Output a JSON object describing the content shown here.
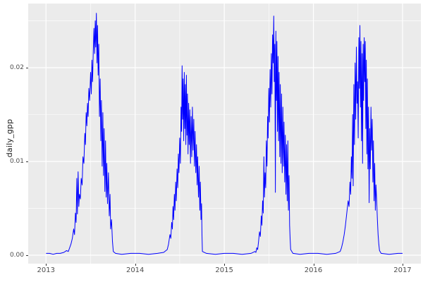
{
  "figure": {
    "background_color": "#FFFFFF",
    "panel_color": "#EBEBEB",
    "gridline_color": "#FFFFFF",
    "tick_label_color": "#4D4D4D",
    "tick_mark_color": "#333333"
  },
  "chart_data": {
    "type": "line",
    "title": "",
    "xlabel": "",
    "ylabel": "daily_gpp",
    "legend": "none",
    "grid": "on",
    "line_color": "#0000FF",
    "x_unit": "decimal year",
    "xlim": [
      2012.8,
      2017.206
    ],
    "ylim": [
      -0.0009,
      0.02684
    ],
    "x_ticks": {
      "values": [
        2013,
        2014,
        2015,
        2016,
        2017
      ],
      "labels": [
        "2013",
        "2014",
        "2015",
        "2016",
        "2017"
      ]
    },
    "x_minor": [
      2013.5,
      2014.5,
      2015.5,
      2016.5
    ],
    "y_ticks": {
      "values": [
        0,
        0.01,
        0.02
      ],
      "labels": [
        "0.00",
        "0.01",
        "0.02"
      ]
    },
    "y_minor": [
      0.005,
      0.015,
      0.025
    ],
    "points": [
      [
        2013.0,
        0.0002
      ],
      [
        2013.04,
        0.0002
      ],
      [
        2013.08,
        0.0001
      ],
      [
        2013.12,
        0.0002
      ],
      [
        2013.16,
        0.0002
      ],
      [
        2013.2,
        0.0003
      ],
      [
        2013.23,
        0.0005
      ],
      [
        2013.25,
        0.0004
      ],
      [
        2013.265,
        0.0008
      ],
      [
        2013.28,
        0.0012
      ],
      [
        2013.295,
        0.0018
      ],
      [
        2013.31,
        0.0028
      ],
      [
        2013.32,
        0.0022
      ],
      [
        2013.33,
        0.0045
      ],
      [
        2013.338,
        0.0035
      ],
      [
        2013.345,
        0.0082
      ],
      [
        2013.352,
        0.0044
      ],
      [
        2013.36,
        0.0089
      ],
      [
        2013.368,
        0.0052
      ],
      [
        2013.375,
        0.0065
      ],
      [
        2013.385,
        0.006
      ],
      [
        2013.395,
        0.0082
      ],
      [
        2013.405,
        0.0075
      ],
      [
        2013.415,
        0.0105
      ],
      [
        2013.425,
        0.0098
      ],
      [
        2013.435,
        0.013
      ],
      [
        2013.442,
        0.0118
      ],
      [
        2013.45,
        0.0152
      ],
      [
        2013.458,
        0.0138
      ],
      [
        2013.465,
        0.0162
      ],
      [
        2013.472,
        0.0148
      ],
      [
        2013.48,
        0.0178
      ],
      [
        2013.49,
        0.0165
      ],
      [
        2013.5,
        0.0195
      ],
      [
        2013.508,
        0.0172
      ],
      [
        2013.515,
        0.0208
      ],
      [
        2013.522,
        0.0185
      ],
      [
        2013.53,
        0.0218
      ],
      [
        2013.538,
        0.0242
      ],
      [
        2013.545,
        0.0215
      ],
      [
        2013.552,
        0.025
      ],
      [
        2013.558,
        0.0222
      ],
      [
        2013.565,
        0.0258
      ],
      [
        2013.572,
        0.0205
      ],
      [
        2013.578,
        0.0245
      ],
      [
        2013.585,
        0.0192
      ],
      [
        2013.592,
        0.0225
      ],
      [
        2013.6,
        0.0148
      ],
      [
        2013.608,
        0.0188
      ],
      [
        2013.615,
        0.0122
      ],
      [
        2013.622,
        0.0165
      ],
      [
        2013.63,
        0.0095
      ],
      [
        2013.638,
        0.0152
      ],
      [
        2013.645,
        0.0085
      ],
      [
        2013.652,
        0.0135
      ],
      [
        2013.66,
        0.0068
      ],
      [
        2013.668,
        0.0122
      ],
      [
        2013.675,
        0.0062
      ],
      [
        2013.682,
        0.0098
      ],
      [
        2013.69,
        0.0055
      ],
      [
        2013.7,
        0.0088
      ],
      [
        2013.71,
        0.0042
      ],
      [
        2013.718,
        0.0065
      ],
      [
        2013.725,
        0.0028
      ],
      [
        2013.735,
        0.0038
      ],
      [
        2013.745,
        0.0015
      ],
      [
        2013.755,
        0.0004
      ],
      [
        2013.78,
        0.0002
      ],
      [
        2013.85,
        0.0001
      ],
      [
        2013.95,
        0.0002
      ],
      [
        2014.05,
        0.0002
      ],
      [
        2014.15,
        0.0001
      ],
      [
        2014.25,
        0.0002
      ],
      [
        2014.32,
        0.0003
      ],
      [
        2014.36,
        0.0006
      ],
      [
        2014.375,
        0.0012
      ],
      [
        2014.39,
        0.0022
      ],
      [
        2014.4,
        0.0018
      ],
      [
        2014.41,
        0.0035
      ],
      [
        2014.418,
        0.0028
      ],
      [
        2014.425,
        0.0052
      ],
      [
        2014.432,
        0.0038
      ],
      [
        2014.44,
        0.0065
      ],
      [
        2014.447,
        0.0048
      ],
      [
        2014.455,
        0.0078
      ],
      [
        2014.462,
        0.0058
      ],
      [
        2014.47,
        0.0092
      ],
      [
        2014.478,
        0.0072
      ],
      [
        2014.485,
        0.0108
      ],
      [
        2014.492,
        0.0088
      ],
      [
        2014.5,
        0.0125
      ],
      [
        2014.508,
        0.0098
      ],
      [
        2014.515,
        0.0158
      ],
      [
        2014.521,
        0.0132
      ],
      [
        2014.527,
        0.0202
      ],
      [
        2014.533,
        0.0145
      ],
      [
        2014.539,
        0.0188
      ],
      [
        2014.545,
        0.0122
      ],
      [
        2014.551,
        0.0195
      ],
      [
        2014.557,
        0.0135
      ],
      [
        2014.563,
        0.0182
      ],
      [
        2014.569,
        0.0118
      ],
      [
        2014.575,
        0.0192
      ],
      [
        2014.581,
        0.0128
      ],
      [
        2014.587,
        0.0172
      ],
      [
        2014.593,
        0.0108
      ],
      [
        2014.6,
        0.0162
      ],
      [
        2014.607,
        0.0118
      ],
      [
        2014.614,
        0.0155
      ],
      [
        2014.621,
        0.0098
      ],
      [
        2014.628,
        0.0148
      ],
      [
        2014.635,
        0.0105
      ],
      [
        2014.642,
        0.0158
      ],
      [
        2014.65,
        0.0112
      ],
      [
        2014.658,
        0.0145
      ],
      [
        2014.665,
        0.0095
      ],
      [
        2014.672,
        0.0132
      ],
      [
        2014.68,
        0.0088
      ],
      [
        2014.688,
        0.0118
      ],
      [
        2014.695,
        0.0075
      ],
      [
        2014.702,
        0.0105
      ],
      [
        2014.71,
        0.0062
      ],
      [
        2014.718,
        0.0095
      ],
      [
        2014.725,
        0.0048
      ],
      [
        2014.732,
        0.0078
      ],
      [
        2014.739,
        0.0038
      ],
      [
        2014.745,
        0.0055
      ],
      [
        2014.75,
        0.0022
      ],
      [
        2014.755,
        0.0004
      ],
      [
        2014.8,
        0.0002
      ],
      [
        2014.9,
        0.0001
      ],
      [
        2015.0,
        0.0002
      ],
      [
        2015.1,
        0.0002
      ],
      [
        2015.2,
        0.0001
      ],
      [
        2015.3,
        0.0002
      ],
      [
        2015.345,
        0.0004
      ],
      [
        2015.355,
        0.0003
      ],
      [
        2015.365,
        0.0008
      ],
      [
        2015.375,
        0.0006
      ],
      [
        2015.385,
        0.0015
      ],
      [
        2015.395,
        0.0025
      ],
      [
        2015.405,
        0.002
      ],
      [
        2015.415,
        0.0042
      ],
      [
        2015.422,
        0.0032
      ],
      [
        2015.43,
        0.0058
      ],
      [
        2015.437,
        0.0045
      ],
      [
        2015.444,
        0.0105
      ],
      [
        2015.451,
        0.0062
      ],
      [
        2015.458,
        0.0088
      ],
      [
        2015.465,
        0.0072
      ],
      [
        2015.472,
        0.0122
      ],
      [
        2015.479,
        0.0095
      ],
      [
        2015.486,
        0.0148
      ],
      [
        2015.493,
        0.0125
      ],
      [
        2015.5,
        0.0178
      ],
      [
        2015.507,
        0.0142
      ],
      [
        2015.514,
        0.0198
      ],
      [
        2015.521,
        0.0158
      ],
      [
        2015.528,
        0.0215
      ],
      [
        2015.535,
        0.0172
      ],
      [
        2015.542,
        0.0235
      ],
      [
        2015.549,
        0.0205
      ],
      [
        2015.555,
        0.0255
      ],
      [
        2015.561,
        0.0185
      ],
      [
        2015.567,
        0.0225
      ],
      [
        2015.573,
        0.0067
      ],
      [
        2015.579,
        0.0239
      ],
      [
        2015.585,
        0.0165
      ],
      [
        2015.591,
        0.0228
      ],
      [
        2015.597,
        0.0132
      ],
      [
        2015.603,
        0.0212
      ],
      [
        2015.609,
        0.0122
      ],
      [
        2015.615,
        0.0195
      ],
      [
        2015.622,
        0.0105
      ],
      [
        2015.629,
        0.0182
      ],
      [
        2015.636,
        0.0098
      ],
      [
        2015.643,
        0.0172
      ],
      [
        2015.65,
        0.0088
      ],
      [
        2015.657,
        0.0158
      ],
      [
        2015.664,
        0.0095
      ],
      [
        2015.671,
        0.0142
      ],
      [
        2015.678,
        0.0078
      ],
      [
        2015.685,
        0.0128
      ],
      [
        2015.692,
        0.0065
      ],
      [
        2015.699,
        0.0118
      ],
      [
        2015.706,
        0.0058
      ],
      [
        2015.713,
        0.0122
      ],
      [
        2015.72,
        0.0048
      ],
      [
        2015.727,
        0.0085
      ],
      [
        2015.733,
        0.0032
      ],
      [
        2015.739,
        0.0018
      ],
      [
        2015.745,
        0.0006
      ],
      [
        2015.77,
        0.0002
      ],
      [
        2015.85,
        0.0001
      ],
      [
        2015.95,
        0.0002
      ],
      [
        2016.05,
        0.0002
      ],
      [
        2016.15,
        0.0001
      ],
      [
        2016.25,
        0.0002
      ],
      [
        2016.3,
        0.0004
      ],
      [
        2016.315,
        0.0008
      ],
      [
        2016.33,
        0.0014
      ],
      [
        2016.345,
        0.0022
      ],
      [
        2016.36,
        0.0032
      ],
      [
        2016.375,
        0.0045
      ],
      [
        2016.39,
        0.0058
      ],
      [
        2016.4,
        0.0052
      ],
      [
        2016.41,
        0.0078
      ],
      [
        2016.418,
        0.0065
      ],
      [
        2016.426,
        0.0105
      ],
      [
        2016.433,
        0.0082
      ],
      [
        2016.44,
        0.015
      ],
      [
        2016.447,
        0.0074
      ],
      [
        2016.454,
        0.0182
      ],
      [
        2016.461,
        0.0118
      ],
      [
        2016.468,
        0.0205
      ],
      [
        2016.475,
        0.0145
      ],
      [
        2016.482,
        0.0222
      ],
      [
        2016.489,
        0.0162
      ],
      [
        2016.496,
        0.0185
      ],
      [
        2016.503,
        0.0125
      ],
      [
        2016.51,
        0.0232
      ],
      [
        2016.516,
        0.0178
      ],
      [
        2016.522,
        0.0245
      ],
      [
        2016.528,
        0.0158
      ],
      [
        2016.534,
        0.0228
      ],
      [
        2016.54,
        0.0122
      ],
      [
        2016.546,
        0.0215
      ],
      [
        2016.552,
        0.0098
      ],
      [
        2016.558,
        0.0225
      ],
      [
        2016.564,
        0.0165
      ],
      [
        2016.57,
        0.0232
      ],
      [
        2016.576,
        0.0185
      ],
      [
        2016.582,
        0.0228
      ],
      [
        2016.588,
        0.0135
      ],
      [
        2016.594,
        0.0208
      ],
      [
        2016.6,
        0.0108
      ],
      [
        2016.606,
        0.0188
      ],
      [
        2016.612,
        0.0092
      ],
      [
        2016.618,
        0.0158
      ],
      [
        2016.625,
        0.0056
      ],
      [
        2016.632,
        0.0135
      ],
      [
        2016.639,
        0.0092
      ],
      [
        2016.646,
        0.0158
      ],
      [
        2016.653,
        0.0112
      ],
      [
        2016.66,
        0.0145
      ],
      [
        2016.667,
        0.0078
      ],
      [
        2016.674,
        0.0122
      ],
      [
        2016.681,
        0.0058
      ],
      [
        2016.688,
        0.0098
      ],
      [
        2016.695,
        0.0048
      ],
      [
        2016.702,
        0.0075
      ],
      [
        2016.71,
        0.0058
      ],
      [
        2016.718,
        0.0038
      ],
      [
        2016.726,
        0.0022
      ],
      [
        2016.734,
        0.0012
      ],
      [
        2016.742,
        0.0005
      ],
      [
        2016.76,
        0.0002
      ],
      [
        2016.85,
        0.0001
      ],
      [
        2016.95,
        0.0002
      ],
      [
        2017.0,
        0.0002
      ]
    ]
  }
}
